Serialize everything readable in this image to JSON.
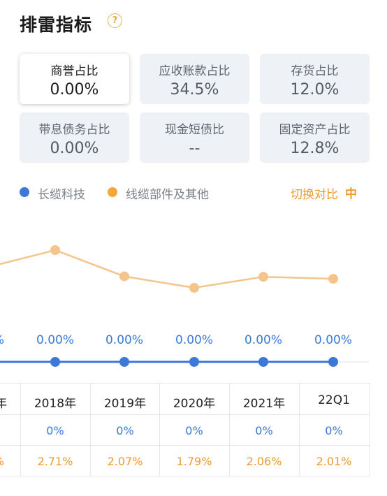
{
  "header": {
    "title": "排雷指标",
    "help_icon": "question-circle-icon"
  },
  "cards": [
    {
      "label": "商誉占比",
      "value": "0.00%",
      "active": true
    },
    {
      "label": "应收账款占比",
      "value": "34.5%"
    },
    {
      "label": "存货占比",
      "value": "12.0%"
    },
    {
      "label": "带息债务占比",
      "value": "0.00%"
    },
    {
      "label": "现金短债比",
      "value": "--"
    },
    {
      "label": "固定资产占比",
      "value": "12.8%"
    }
  ],
  "legend": {
    "series_a": {
      "name": "长缆科技",
      "color": "#3b78d8"
    },
    "series_b": {
      "name": "线缆部件及其他",
      "color": "#f5a63a"
    },
    "switch_label": "切换对比",
    "switch_icon": "compare-toggle-icon"
  },
  "chart_data": {
    "type": "line",
    "categories": [
      "2018年",
      "2019年",
      "2020年",
      "2021年",
      "22Q1"
    ],
    "series": [
      {
        "name": "长缆科技",
        "values": [
          0,
          0,
          0,
          0,
          0
        ],
        "labels": [
          "0.00%",
          "0.00%",
          "0.00%",
          "0.00%",
          "0.00%"
        ],
        "color": "#3b78d8"
      },
      {
        "name": "线缆部件及其他",
        "values": [
          2.71,
          2.07,
          1.79,
          2.06,
          2.01
        ],
        "color": "#f5c48a"
      }
    ],
    "left_partial_label": "%"
  },
  "table": {
    "partial_year": "年",
    "partial_orange": "%",
    "years": [
      "2018年",
      "2019年",
      "2020年",
      "2021年",
      "22Q1"
    ],
    "row_company": [
      "0%",
      "0%",
      "0%",
      "0%",
      "0%"
    ],
    "row_industry": [
      "2.71%",
      "2.07%",
      "1.79%",
      "2.06%",
      "2.01%"
    ]
  }
}
